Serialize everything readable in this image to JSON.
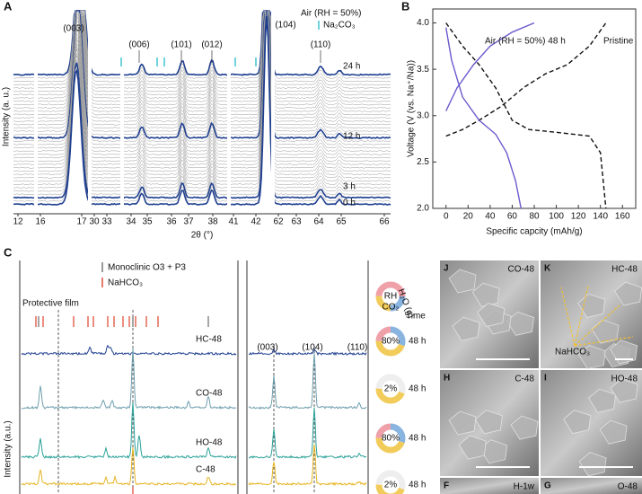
{
  "panel_a": {
    "label": "A",
    "y_label": "Intensity (a. u.)",
    "x_label": "2θ (°)",
    "x_tick_labels": [
      12,
      16,
      17,
      30,
      33,
      34,
      35,
      36,
      37,
      38,
      41,
      42,
      62,
      63,
      64,
      65,
      66
    ],
    "peak_labels": [
      "(003)",
      "(006)",
      "(101)",
      "(012)",
      "(104)",
      "(110)"
    ],
    "legend": [
      "Air (RH = 50%)",
      "Na₂CO₃"
    ],
    "time_labels": [
      "24 h",
      "12 h",
      "3 h",
      "0 h"
    ]
  },
  "chart_data": {
    "type": "line",
    "label": "B",
    "x_label": "Specific capcity (mAh/g)",
    "y_label": "Voltage (V (vs. Na⁺/Na))",
    "xlim": [
      -12,
      172
    ],
    "ylim": [
      2.0,
      4.15
    ],
    "xticks": [
      0,
      20,
      40,
      60,
      80,
      100,
      120,
      140,
      160
    ],
    "yticks": [
      {
        "value": 2,
        "label": "2.0"
      },
      2.5,
      {
        "value": 3,
        "label": "3.0"
      },
      3.5,
      {
        "value": 4,
        "label": "4.0"
      }
    ],
    "series": [
      {
        "name": "Pristine",
        "color": "#111111",
        "dashed": true,
        "x": [
          0,
          15,
          30,
          50,
          70,
          90,
          110,
          130,
          145,
          null,
          0,
          15,
          30,
          45,
          60,
          75,
          100,
          130,
          140,
          145
        ],
        "values": [
          2.78,
          2.85,
          2.95,
          3.1,
          3.3,
          3.45,
          3.55,
          3.75,
          4.0,
          null,
          4.0,
          3.75,
          3.55,
          3.3,
          2.95,
          2.85,
          2.82,
          2.78,
          2.6,
          2.0
        ]
      },
      {
        "name": "Air (RH = 50%) 48 h",
        "color": "#6a5acd",
        "dashed": false,
        "x": [
          0,
          10,
          25,
          40,
          60,
          80,
          null,
          0,
          5,
          15,
          30,
          45,
          55,
          63,
          68
        ],
        "values": [
          3.05,
          3.3,
          3.55,
          3.75,
          3.9,
          4.0,
          null,
          3.95,
          3.6,
          3.2,
          2.95,
          2.8,
          2.6,
          2.3,
          2.0
        ]
      }
    ]
  },
  "panel_c": {
    "label": "C",
    "y_label": "Intensity (a.u.)",
    "legend": [
      "Monoclinic O3 + P3",
      "NaHCO₃"
    ],
    "annotation": "Protective film",
    "samples": [
      "HC-48",
      "CO-48",
      "HO-48",
      "C-48"
    ],
    "peak_labels": [
      "(003)",
      "(104)",
      "(110)"
    ],
    "key": {
      "center": "RH",
      "water": "H₂O (g)",
      "co2": "CO₂",
      "time": "Time"
    },
    "conditions": [
      {
        "rh": "80%",
        "time": "48 h"
      },
      {
        "rh": "2%",
        "time": "48 h"
      },
      {
        "rh": "80%",
        "time": "48 h"
      },
      {
        "rh": "2%",
        "time": "48 h"
      }
    ]
  },
  "sem": {
    "annotation": "NaHCO₃",
    "panels": [
      {
        "letter": "J",
        "label": "CO-48"
      },
      {
        "letter": "K",
        "label": "HC-48"
      },
      {
        "letter": "H",
        "label": "C-48"
      },
      {
        "letter": "I",
        "label": "HO-48"
      },
      {
        "letter": "F",
        "label": "H-1w"
      },
      {
        "letter": "G",
        "label": "O-48"
      }
    ]
  }
}
